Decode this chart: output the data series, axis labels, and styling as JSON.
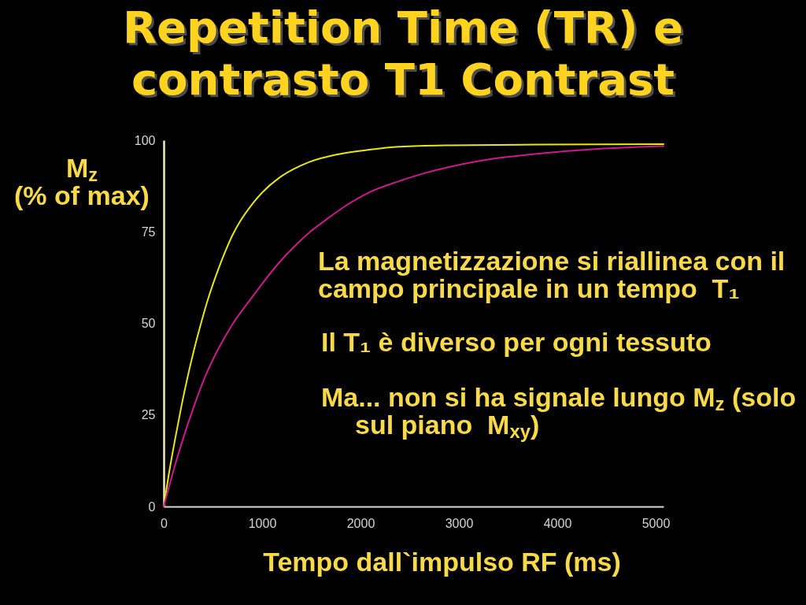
{
  "chart_data": {
    "type": "line",
    "title": "Repetition Time (TR) e\ncontrasto T1 Contrast",
    "xlabel": "Tempo dall`impulso RF (ms)",
    "ylabel": "M$_{z}$\n(% of max)",
    "annotations": [
      "La magnetizzazione si riallinea con il campo principale in un tempo  T₁",
      "Il T₁ è diverso per ogni tessuto",
      "Ma... non si ha signale lungo M$_{z}$ (solo sul piano  M$_{xy}$)"
    ],
    "series": [
      {
        "color": "#e6e619",
        "x": [
          0,
          50,
          120,
          180,
          244,
          300,
          367,
          450,
          551,
          630,
          705,
          780,
          859,
          1000,
          1167,
          1320,
          1475,
          1782,
          2090,
          2390,
          2900,
          3800,
          5080
        ],
        "values": [
          0,
          8.5,
          19,
          27.4,
          35.5,
          41.9,
          48.8,
          56.6,
          64.5,
          69.9,
          74.4,
          78,
          81.1,
          85.7,
          89.6,
          92.1,
          94,
          96.2,
          97.4,
          98.2,
          98.6,
          98.8,
          98.9
        ]
      },
      {
        "color": "#cc1a8c",
        "x": [
          0,
          100,
          200,
          300,
          420,
          550,
          700,
          883,
          1000,
          1167,
          1320,
          1475,
          1650,
          1856,
          2090,
          2390,
          2650,
          2920,
          3200,
          3456,
          3990,
          4520,
          5080
        ],
        "values": [
          0,
          9.9,
          18.8,
          26.8,
          35.4,
          42.8,
          49.8,
          56.6,
          60.8,
          66.4,
          70.8,
          74.7,
          78.3,
          82.2,
          85.8,
          88.8,
          91,
          92.8,
          94.3,
          95.3,
          96.8,
          97.8,
          98.4
        ]
      }
    ],
    "xlim": [
      0,
      5080
    ],
    "ylim": [
      0,
      100
    ],
    "xticks": [
      0,
      1000,
      2000,
      3000,
      4000,
      5000
    ],
    "yticks": [
      0,
      25,
      50,
      75,
      100
    ],
    "grid": false
  }
}
